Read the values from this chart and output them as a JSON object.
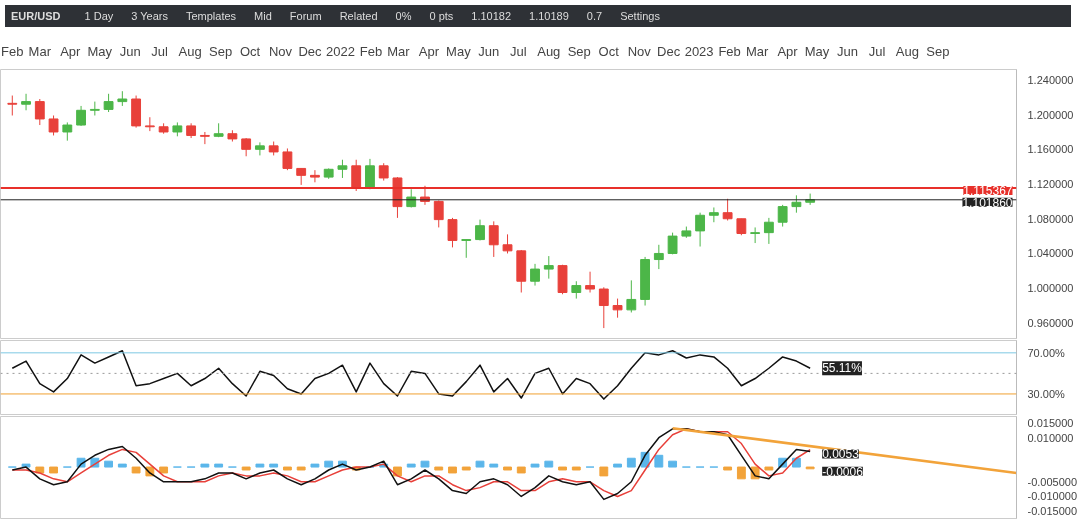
{
  "chart_data": [
    {
      "type": "candlestick",
      "title": "EUR/USD",
      "annotations": [
        "1 Day",
        "3 Years",
        "Templates",
        "Mid",
        "Forum",
        "Related",
        "0%",
        "0 pts",
        "1.10182",
        "1.10189",
        "0.7",
        "Settings"
      ],
      "x": [
        "2021-02-01",
        "2021-02-15",
        "2021-03-01",
        "2021-03-15",
        "2021-03-29",
        "2021-04-12",
        "2021-04-26",
        "2021-05-10",
        "2021-05-24",
        "2021-06-07",
        "2021-06-21",
        "2021-07-05",
        "2021-07-19",
        "2021-08-02",
        "2021-08-16",
        "2021-08-30",
        "2021-09-13",
        "2021-09-27",
        "2021-10-11",
        "2021-10-25",
        "2021-11-08",
        "2021-11-22",
        "2021-12-06",
        "2021-12-20",
        "2022-01-03",
        "2022-01-17",
        "2022-01-31",
        "2022-02-14",
        "2022-02-28",
        "2022-03-14",
        "2022-03-28",
        "2022-04-11",
        "2022-04-25",
        "2022-05-09",
        "2022-05-23",
        "2022-06-06",
        "2022-06-20",
        "2022-07-04",
        "2022-07-18",
        "2022-08-01",
        "2022-08-15",
        "2022-08-29",
        "2022-09-12",
        "2022-09-26",
        "2022-10-10",
        "2022-10-24",
        "2022-11-07",
        "2022-11-21",
        "2022-12-05",
        "2022-12-19",
        "2023-01-02",
        "2023-01-16",
        "2023-01-30",
        "2023-02-13",
        "2023-02-27",
        "2023-03-13",
        "2023-03-27",
        "2023-04-10",
        "2023-04-24"
      ],
      "ohlc": [
        [
          1.213,
          1.222,
          1.199,
          1.212
        ],
        [
          1.212,
          1.224,
          1.205,
          1.215
        ],
        [
          1.215,
          1.218,
          1.188,
          1.195
        ],
        [
          1.195,
          1.199,
          1.176,
          1.18
        ],
        [
          1.18,
          1.191,
          1.17,
          1.188
        ],
        [
          1.188,
          1.21,
          1.187,
          1.205
        ],
        [
          1.205,
          1.215,
          1.199,
          1.206
        ],
        [
          1.206,
          1.224,
          1.203,
          1.215
        ],
        [
          1.215,
          1.227,
          1.21,
          1.218
        ],
        [
          1.218,
          1.222,
          1.185,
          1.187
        ],
        [
          1.187,
          1.197,
          1.181,
          1.186
        ],
        [
          1.186,
          1.19,
          1.178,
          1.18
        ],
        [
          1.18,
          1.191,
          1.175,
          1.187
        ],
        [
          1.187,
          1.19,
          1.173,
          1.176
        ],
        [
          1.176,
          1.18,
          1.166,
          1.175
        ],
        [
          1.175,
          1.19,
          1.174,
          1.178
        ],
        [
          1.178,
          1.182,
          1.169,
          1.172
        ],
        [
          1.172,
          1.173,
          1.152,
          1.16
        ],
        [
          1.16,
          1.168,
          1.153,
          1.164
        ],
        [
          1.164,
          1.169,
          1.153,
          1.157
        ],
        [
          1.157,
          1.161,
          1.136,
          1.138
        ],
        [
          1.138,
          1.138,
          1.119,
          1.13
        ],
        [
          1.13,
          1.136,
          1.122,
          1.128
        ],
        [
          1.128,
          1.138,
          1.126,
          1.137
        ],
        [
          1.137,
          1.148,
          1.127,
          1.141
        ],
        [
          1.141,
          1.148,
          1.112,
          1.115
        ],
        [
          1.115,
          1.149,
          1.114,
          1.141
        ],
        [
          1.141,
          1.144,
          1.124,
          1.127
        ],
        [
          1.127,
          1.128,
          1.081,
          1.094
        ],
        [
          1.094,
          1.114,
          1.093,
          1.105
        ],
        [
          1.105,
          1.118,
          1.096,
          1.1
        ],
        [
          1.1,
          1.101,
          1.07,
          1.079
        ],
        [
          1.079,
          1.081,
          1.047,
          1.055
        ],
        [
          1.055,
          1.056,
          1.035,
          1.056
        ],
        [
          1.056,
          1.079,
          1.055,
          1.072
        ],
        [
          1.072,
          1.077,
          1.036,
          1.05
        ],
        [
          1.05,
          1.062,
          1.04,
          1.043
        ],
        [
          1.043,
          1.044,
          0.995,
          1.008
        ],
        [
          1.008,
          1.028,
          1.003,
          1.022
        ],
        [
          1.022,
          1.037,
          1.011,
          1.026
        ],
        [
          1.026,
          1.027,
          0.993,
          0.995
        ],
        [
          0.995,
          1.008,
          0.988,
          1.003
        ],
        [
          1.003,
          1.019,
          0.995,
          0.999
        ],
        [
          0.999,
          1.001,
          0.954,
          0.98
        ],
        [
          0.98,
          0.988,
          0.966,
          0.975
        ],
        [
          0.975,
          1.009,
          0.972,
          0.987
        ],
        [
          0.987,
          1.036,
          0.98,
          1.033
        ],
        [
          1.033,
          1.05,
          1.022,
          1.04
        ],
        [
          1.04,
          1.064,
          1.039,
          1.06
        ],
        [
          1.06,
          1.071,
          1.058,
          1.066
        ],
        [
          1.066,
          1.087,
          1.048,
          1.084
        ],
        [
          1.084,
          1.093,
          1.076,
          1.087
        ],
        [
          1.087,
          1.103,
          1.078,
          1.08
        ],
        [
          1.08,
          1.08,
          1.061,
          1.063
        ],
        [
          1.063,
          1.07,
          1.052,
          1.064
        ],
        [
          1.064,
          1.081,
          1.051,
          1.076
        ],
        [
          1.076,
          1.096,
          1.071,
          1.094
        ],
        [
          1.094,
          1.107,
          1.087,
          1.099
        ],
        [
          1.099,
          1.109,
          1.096,
          1.102
        ]
      ],
      "colors": [
        "#e8403a",
        "#4cb648",
        "#e8403a",
        "#e8403a",
        "#4cb648",
        "#4cb648",
        "#4cb648",
        "#4cb648",
        "#4cb648",
        "#e8403a",
        "#e8403a",
        "#e8403a",
        "#4cb648",
        "#e8403a",
        "#e8403a",
        "#4cb648",
        "#e8403a",
        "#e8403a",
        "#4cb648",
        "#e8403a",
        "#e8403a",
        "#e8403a",
        "#e8403a",
        "#4cb648",
        "#4cb648",
        "#e8403a",
        "#4cb648",
        "#e8403a",
        "#e8403a",
        "#4cb648",
        "#e8403a",
        "#e8403a",
        "#e8403a",
        "#4cb648",
        "#4cb648",
        "#e8403a",
        "#e8403a",
        "#e8403a",
        "#4cb648",
        "#4cb648",
        "#e8403a",
        "#4cb648",
        "#e8403a",
        "#e8403a",
        "#e8403a",
        "#4cb648",
        "#4cb648",
        "#4cb648",
        "#4cb648",
        "#4cb648",
        "#4cb648",
        "#4cb648",
        "#e8403a",
        "#e8403a",
        "#4cb648",
        "#4cb648",
        "#4cb648",
        "#4cb648",
        "#4cb648"
      ],
      "xlim": [
        "2021-01-20",
        "2023-11-20"
      ],
      "xticks": [
        {
          "value": "2021-02-01",
          "label": "Feb"
        },
        {
          "value": "2021-03-01",
          "label": "Mar"
        },
        {
          "value": "2021-04-01",
          "label": "Apr"
        },
        {
          "value": "2021-05-01",
          "label": "May"
        },
        {
          "value": "2021-06-01",
          "label": "Jun"
        },
        {
          "value": "2021-07-01",
          "label": "Jul"
        },
        {
          "value": "2021-08-01",
          "label": "Aug"
        },
        {
          "value": "2021-09-01",
          "label": "Sep"
        },
        {
          "value": "2021-10-01",
          "label": "Oct"
        },
        {
          "value": "2021-11-01",
          "label": "Nov"
        },
        {
          "value": "2021-12-01",
          "label": "Dec"
        },
        {
          "value": "2022-01-01",
          "label": "2022"
        },
        {
          "value": "2022-02-01",
          "label": "Feb"
        },
        {
          "value": "2022-03-01",
          "label": "Mar"
        },
        {
          "value": "2022-04-01",
          "label": "Apr"
        },
        {
          "value": "2022-05-01",
          "label": "May"
        },
        {
          "value": "2022-06-01",
          "label": "Jun"
        },
        {
          "value": "2022-07-01",
          "label": "Jul"
        },
        {
          "value": "2022-08-01",
          "label": "Aug"
        },
        {
          "value": "2022-09-01",
          "label": "Sep"
        },
        {
          "value": "2022-10-01",
          "label": "Oct"
        },
        {
          "value": "2022-11-01",
          "label": "Nov"
        },
        {
          "value": "2022-12-01",
          "label": "Dec"
        },
        {
          "value": "2023-01-01",
          "label": "2023"
        },
        {
          "value": "2023-02-01",
          "label": "Feb"
        },
        {
          "value": "2023-03-01",
          "label": "Mar"
        },
        {
          "value": "2023-04-01",
          "label": "Apr"
        },
        {
          "value": "2023-05-01",
          "label": "May"
        },
        {
          "value": "2023-06-01",
          "label": "Jun"
        },
        {
          "value": "2023-07-01",
          "label": "Jul"
        },
        {
          "value": "2023-08-01",
          "label": "Aug"
        },
        {
          "value": "2023-09-01",
          "label": "Sep"
        }
      ],
      "ylim": [
        0.942,
        1.252
      ],
      "yticks": [
        {
          "value": 0.96,
          "label": "0.960000"
        },
        {
          "value": 1.0,
          "label": "1.000000"
        },
        {
          "value": 1.04,
          "label": "1.040000"
        },
        {
          "value": 1.08,
          "label": "1.080000"
        },
        {
          "value": 1.12,
          "label": "1.120000"
        },
        {
          "value": 1.16,
          "label": "1.160000"
        },
        {
          "value": 1.2,
          "label": "1.200000"
        },
        {
          "value": 1.24,
          "label": "1.240000"
        }
      ],
      "ref_lines": [
        {
          "axis": "y",
          "value": 1.115367,
          "label": "1.115367",
          "color": "#e8302a"
        },
        {
          "axis": "y",
          "value": 1.10186,
          "label": "1.101860",
          "color": "#222222"
        }
      ]
    },
    {
      "type": "line",
      "x": [
        "2021-02-01",
        "2021-02-15",
        "2021-03-01",
        "2021-03-15",
        "2021-03-29",
        "2021-04-12",
        "2021-04-26",
        "2021-05-10",
        "2021-05-24",
        "2021-06-07",
        "2021-06-21",
        "2021-07-05",
        "2021-07-19",
        "2021-08-02",
        "2021-08-16",
        "2021-08-30",
        "2021-09-13",
        "2021-09-27",
        "2021-10-11",
        "2021-10-25",
        "2021-11-08",
        "2021-11-22",
        "2021-12-06",
        "2021-12-20",
        "2022-01-03",
        "2022-01-17",
        "2022-01-31",
        "2022-02-14",
        "2022-02-28",
        "2022-03-14",
        "2022-03-28",
        "2022-04-11",
        "2022-04-25",
        "2022-05-09",
        "2022-05-23",
        "2022-06-06",
        "2022-06-20",
        "2022-07-04",
        "2022-07-18",
        "2022-08-01",
        "2022-08-15",
        "2022-08-29",
        "2022-09-12",
        "2022-09-26",
        "2022-10-10",
        "2022-10-24",
        "2022-11-07",
        "2022-11-21",
        "2022-12-05",
        "2022-12-19",
        "2023-01-02",
        "2023-01-16",
        "2023-01-30",
        "2023-02-13",
        "2023-02-27",
        "2023-03-13",
        "2023-03-27",
        "2023-04-10",
        "2023-04-24"
      ],
      "series": [
        {
          "color": "#111111",
          "values": [
            55,
            62,
            40,
            32,
            45,
            68,
            60,
            66,
            72,
            38,
            40,
            45,
            50,
            38,
            45,
            55,
            40,
            28,
            52,
            48,
            35,
            30,
            45,
            50,
            58,
            32,
            60,
            40,
            28,
            52,
            50,
            30,
            28,
            42,
            58,
            32,
            45,
            26,
            50,
            55,
            30,
            45,
            40,
            25,
            38,
            55,
            70,
            68,
            72,
            65,
            68,
            66,
            55,
            38,
            45,
            55,
            66,
            62,
            55
          ]
        }
      ],
      "xlim": [
        "2021-01-20",
        "2023-11-20"
      ],
      "ylim": [
        10,
        82
      ],
      "yticks": [
        {
          "value": 30,
          "label": "30.00%"
        },
        {
          "value": 70,
          "label": "70.00%"
        }
      ],
      "tick_labels": "y",
      "ref_lines": [
        {
          "axis": "y",
          "value": 70,
          "color": "#7ec8e3"
        },
        {
          "axis": "y",
          "value": 50,
          "color": "#999999",
          "line_style": "dotted"
        },
        {
          "axis": "y",
          "value": 30,
          "color": "#f0a030"
        }
      ],
      "annotations": [
        {
          "text": "55.11%",
          "x": "2023-04-24",
          "y": 55.11
        }
      ]
    },
    {
      "type": "line",
      "x": [
        "2021-02-01",
        "2021-02-15",
        "2021-03-01",
        "2021-03-15",
        "2021-03-29",
        "2021-04-12",
        "2021-04-26",
        "2021-05-10",
        "2021-05-24",
        "2021-06-07",
        "2021-06-21",
        "2021-07-05",
        "2021-07-19",
        "2021-08-02",
        "2021-08-16",
        "2021-08-30",
        "2021-09-13",
        "2021-09-27",
        "2021-10-11",
        "2021-10-25",
        "2021-11-08",
        "2021-11-22",
        "2021-12-06",
        "2021-12-20",
        "2022-01-03",
        "2022-01-17",
        "2022-01-31",
        "2022-02-14",
        "2022-02-28",
        "2022-03-14",
        "2022-03-28",
        "2022-04-11",
        "2022-04-25",
        "2022-05-09",
        "2022-05-23",
        "2022-06-06",
        "2022-06-20",
        "2022-07-04",
        "2022-07-18",
        "2022-08-01",
        "2022-08-15",
        "2022-08-29",
        "2022-09-12",
        "2022-09-26",
        "2022-10-10",
        "2022-10-24",
        "2022-11-07",
        "2022-11-21",
        "2022-12-05",
        "2022-12-19",
        "2023-01-02",
        "2023-01-16",
        "2023-01-30",
        "2023-02-13",
        "2023-02-27",
        "2023-03-13",
        "2023-03-27",
        "2023-04-10",
        "2023-04-24"
      ],
      "series": [
        {
          "type": "bar",
          "colors": [
            "#5bb6ea",
            "#5bb6ea",
            "#f2a33a",
            "#f2a33a",
            "#5bb6ea",
            "#5bb6ea",
            "#5bb6ea",
            "#5bb6ea",
            "#5bb6ea",
            "#f2a33a",
            "#f2a33a",
            "#f2a33a",
            "#5bb6ea",
            "#5bb6ea",
            "#5bb6ea",
            "#5bb6ea",
            "#5bb6ea",
            "#f2a33a",
            "#5bb6ea",
            "#5bb6ea",
            "#f2a33a",
            "#f2a33a",
            "#5bb6ea",
            "#5bb6ea",
            "#5bb6ea",
            "#f2a33a",
            "#5bb6ea",
            "#5bb6ea",
            "#f2a33a",
            "#5bb6ea",
            "#5bb6ea",
            "#f2a33a",
            "#f2a33a",
            "#f2a33a",
            "#5bb6ea",
            "#5bb6ea",
            "#f2a33a",
            "#f2a33a",
            "#5bb6ea",
            "#5bb6ea",
            "#f2a33a",
            "#f2a33a",
            "#5bb6ea",
            "#f2a33a",
            "#5bb6ea",
            "#5bb6ea",
            "#5bb6ea",
            "#5bb6ea",
            "#5bb6ea",
            "#5bb6ea",
            "#5bb6ea",
            "#5bb6ea",
            "#f2a33a",
            "#f2a33a",
            "#f2a33a",
            "#f2a33a",
            "#5bb6ea",
            "#5bb6ea",
            "#f2a33a"
          ],
          "values": [
            0.0,
            0.001,
            -0.002,
            -0.002,
            0.0,
            0.003,
            0.003,
            0.002,
            0.001,
            -0.002,
            -0.003,
            -0.002,
            0.0,
            0.0,
            0.001,
            0.001,
            0.0,
            -0.001,
            0.001,
            0.001,
            -0.001,
            -0.001,
            0.001,
            0.002,
            0.002,
            -0.001,
            0.0,
            0.001,
            -0.003,
            0.001,
            0.002,
            -0.001,
            -0.002,
            -0.001,
            0.002,
            0.001,
            -0.001,
            -0.002,
            0.001,
            0.002,
            -0.001,
            -0.001,
            0.0,
            -0.003,
            0.001,
            0.003,
            0.005,
            0.004,
            0.002,
            0.0,
            0.0,
            0.0,
            -0.001,
            -0.004,
            -0.004,
            -0.001,
            0.003,
            0.003,
            -0.0006
          ]
        },
        {
          "color": "#e8403a",
          "values": [
            -0.001,
            -0.001,
            -0.002,
            -0.004,
            -0.005,
            -0.002,
            0.001,
            0.004,
            0.006,
            0.005,
            0.001,
            -0.003,
            -0.005,
            -0.005,
            -0.005,
            -0.003,
            -0.002,
            -0.003,
            -0.003,
            -0.002,
            -0.003,
            -0.005,
            -0.005,
            -0.003,
            -0.001,
            0.0,
            0.0,
            0.001,
            -0.003,
            -0.005,
            -0.003,
            -0.003,
            -0.006,
            -0.008,
            -0.007,
            -0.005,
            -0.005,
            -0.008,
            -0.008,
            -0.005,
            -0.004,
            -0.005,
            -0.005,
            -0.008,
            -0.01,
            -0.008,
            -0.001,
            0.006,
            0.011,
            0.013,
            0.012,
            0.012,
            0.012,
            0.008,
            0.001,
            -0.003,
            -0.002,
            0.003,
            0.0059
          ]
        },
        {
          "color": "#111111",
          "values": [
            -0.001,
            0.0,
            -0.004,
            -0.006,
            -0.005,
            0.001,
            0.004,
            0.006,
            0.007,
            0.003,
            -0.002,
            -0.005,
            -0.005,
            -0.005,
            -0.004,
            -0.002,
            -0.002,
            -0.004,
            -0.002,
            -0.001,
            -0.004,
            -0.006,
            -0.004,
            -0.001,
            0.001,
            -0.001,
            0.0,
            0.002,
            -0.006,
            -0.004,
            -0.001,
            -0.004,
            -0.008,
            -0.009,
            -0.005,
            -0.004,
            -0.006,
            -0.01,
            -0.007,
            -0.003,
            -0.005,
            -0.006,
            -0.005,
            -0.011,
            -0.009,
            -0.005,
            0.004,
            0.01,
            0.013,
            0.013,
            0.012,
            0.012,
            0.011,
            0.004,
            -0.003,
            -0.004,
            0.001,
            0.006,
            0.0053
          ]
        },
        {
          "type": "line",
          "color": "#f2a33a",
          "x": [
            "2022-12-05",
            "2023-11-20"
          ],
          "values": [
            0.0132,
            -0.002
          ]
        }
      ],
      "xlim": [
        "2021-01-20",
        "2023-11-20"
      ],
      "ylim": [
        -0.0175,
        0.0172
      ],
      "yticks": [
        {
          "value": 0.015,
          "label": "0.015000"
        },
        {
          "value": 0.01,
          "label": "0.010000"
        },
        {
          "value": -0.005,
          "label": "-0.005000"
        },
        {
          "value": -0.01,
          "label": "-0.010000"
        },
        {
          "value": -0.015,
          "label": "-0.015000"
        }
      ],
      "tick_labels": "y",
      "annotations": [
        {
          "text": "0.0053",
          "x": "2023-04-24",
          "y": 0.0053
        },
        {
          "text": "-0.0006",
          "x": "2023-04-24",
          "y": -0.0006
        }
      ]
    }
  ]
}
